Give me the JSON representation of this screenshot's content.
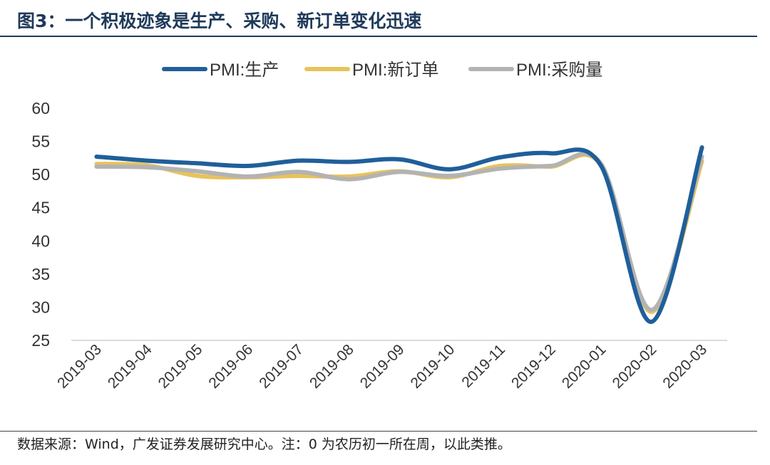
{
  "header": {
    "title": "图3：一个积极迹象是生产、采购、新订单变化迅速"
  },
  "footer": {
    "source": "数据来源：Wind，广发证券发展研究中心。注：0 为农历初一所在周，以此类推。"
  },
  "chart_data": {
    "type": "line",
    "title": "",
    "xlabel": "",
    "ylabel": "",
    "categories": [
      "2019-03",
      "2019-04",
      "2019-05",
      "2019-06",
      "2019-07",
      "2019-08",
      "2019-09",
      "2019-10",
      "2019-11",
      "2019-12",
      "2020-01",
      "2020-02",
      "2020-03"
    ],
    "ylim": [
      25,
      60
    ],
    "yticks": [
      25,
      30,
      35,
      40,
      45,
      50,
      55,
      60
    ],
    "grid": false,
    "legend_position": "top",
    "series": [
      {
        "name": "PMI:生产",
        "color": "#1f5f9a",
        "values": [
          52.7,
          52.1,
          51.7,
          51.3,
          52.1,
          51.9,
          52.3,
          50.8,
          52.6,
          53.2,
          51.3,
          27.8,
          54.1
        ]
      },
      {
        "name": "PMI:新订单",
        "color": "#e8c35a",
        "values": [
          51.6,
          51.4,
          49.8,
          49.6,
          49.8,
          49.7,
          50.5,
          49.6,
          51.3,
          51.2,
          51.4,
          29.3,
          52.0
        ]
      },
      {
        "name": "PMI:采购量",
        "color": "#b3b3b3",
        "values": [
          51.2,
          51.1,
          50.5,
          49.7,
          50.4,
          49.3,
          50.4,
          49.8,
          50.9,
          51.3,
          51.6,
          29.6,
          52.7
        ]
      }
    ]
  }
}
